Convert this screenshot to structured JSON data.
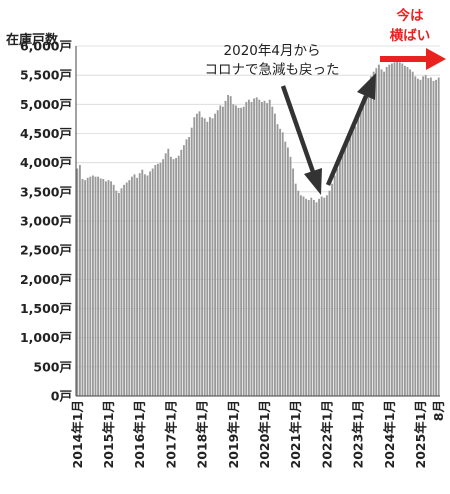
{
  "chart_data": {
    "type": "bar",
    "ylabel": "在庫戸数",
    "ylim": [
      0,
      6000
    ],
    "y_ticks": [
      {
        "value": 0,
        "label": "0戸"
      },
      {
        "value": 500,
        "label": "500戸"
      },
      {
        "value": 1000,
        "label": "1,000戸"
      },
      {
        "value": 1500,
        "label": "1,500戸"
      },
      {
        "value": 2000,
        "label": "2,000戸"
      },
      {
        "value": 2500,
        "label": "2,500戸"
      },
      {
        "value": 3000,
        "label": "3,000戸"
      },
      {
        "value": 3500,
        "label": "3,500戸"
      },
      {
        "value": 4000,
        "label": "4,000戸"
      },
      {
        "value": 4500,
        "label": "4,500戸"
      },
      {
        "value": 5000,
        "label": "5,000戸"
      },
      {
        "value": 5500,
        "label": "5,500戸"
      },
      {
        "value": 6000,
        "label": "6,000戸"
      }
    ],
    "x_ticks": [
      {
        "index": 0,
        "label": "2014年1月"
      },
      {
        "index": 12,
        "label": "2015年1月"
      },
      {
        "index": 24,
        "label": "2016年1月"
      },
      {
        "index": 36,
        "label": "2017年1月"
      },
      {
        "index": 48,
        "label": "2018年1月"
      },
      {
        "index": 60,
        "label": "2019年1月"
      },
      {
        "index": 72,
        "label": "2020年1月"
      },
      {
        "index": 84,
        "label": "2021年1月"
      },
      {
        "index": 96,
        "label": "2022年1月"
      },
      {
        "index": 108,
        "label": "2023年1月"
      },
      {
        "index": 120,
        "label": "2024年1月"
      },
      {
        "index": 132,
        "label": "2025年1月"
      },
      {
        "index": 139,
        "label": "8月"
      }
    ],
    "bar_color": "#9a9a9a",
    "values": [
      3900,
      3960,
      3720,
      3700,
      3740,
      3760,
      3780,
      3760,
      3760,
      3730,
      3720,
      3680,
      3700,
      3680,
      3620,
      3520,
      3480,
      3560,
      3620,
      3660,
      3700,
      3760,
      3800,
      3740,
      3820,
      3880,
      3800,
      3780,
      3850,
      3900,
      3960,
      3980,
      4000,
      4060,
      4160,
      4240,
      4100,
      4060,
      4080,
      4120,
      4220,
      4300,
      4400,
      4440,
      4600,
      4780,
      4840,
      4880,
      4780,
      4760,
      4700,
      4780,
      4760,
      4840,
      4900,
      4980,
      4960,
      5060,
      5160,
      5140,
      5000,
      4980,
      4940,
      4940,
      4960,
      5040,
      5080,
      5040,
      5100,
      5120,
      5080,
      5040,
      5060,
      5020,
      5080,
      4960,
      4840,
      4660,
      4580,
      4520,
      4360,
      4260,
      4100,
      3900,
      3640,
      3520,
      3440,
      3420,
      3380,
      3360,
      3400,
      3360,
      3320,
      3380,
      3420,
      3400,
      3440,
      3520,
      3640,
      3780,
      3900,
      4040,
      4140,
      4240,
      4380,
      4460,
      4560,
      4620,
      4800,
      4940,
      5100,
      5260,
      5380,
      5480,
      5560,
      5620,
      5680,
      5600,
      5560,
      5640,
      5680,
      5700,
      5720,
      5740,
      5720,
      5700,
      5660,
      5640,
      5600,
      5560,
      5480,
      5440,
      5420,
      5480,
      5500,
      5450,
      5460,
      5400,
      5420,
      5460
    ],
    "annotations": [
      {
        "lines": [
          "2020年4月から",
          "コロナで急減も戻った"
        ]
      },
      {
        "lines": [
          "今は",
          "横ばい"
        ],
        "color": "#e8231f"
      }
    ]
  }
}
